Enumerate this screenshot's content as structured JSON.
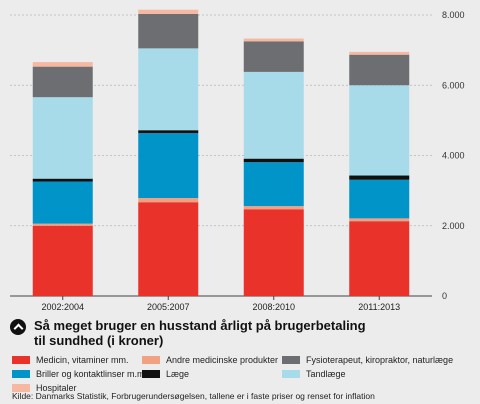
{
  "title": "Så meget bruger en husstand årligt på brugerbetaling til sundhed (i kroner)",
  "title_lines": [
    "Så meget bruger en husstand årligt på brugerbetaling",
    "til sundhed (i kroner)"
  ],
  "source": "Kilde: Danmarks Statistik, Forbrugerundersøgelsen, tallene er i faste priser og renset for inflation",
  "chart_data": {
    "type": "bar",
    "stacked": true,
    "categories": [
      "2002:2004",
      "2005:2007",
      "2008:2010",
      "2011:2013"
    ],
    "ylim": [
      0,
      8000
    ],
    "yticks": [
      0,
      2000,
      4000,
      6000,
      8000
    ],
    "ytick_labels": [
      "0",
      "2.000",
      "4.000",
      "6.000",
      "8.000"
    ],
    "y_axis_side": "right",
    "grid": true,
    "legend_position": "bottom",
    "series": [
      {
        "name": "Medicin, vitaminer mm.",
        "color": "#e8322a",
        "values": [
          2000,
          2670,
          2470,
          2130
        ]
      },
      {
        "name": "Andre medicinske produkter",
        "color": "#f2a082",
        "values": [
          60,
          120,
          90,
          80
        ]
      },
      {
        "name": "Briller og kontaktlinser m.m.",
        "color": "#0094c8",
        "values": [
          1200,
          1850,
          1250,
          1100
        ]
      },
      {
        "name": "Læge",
        "color": "#111111",
        "values": [
          80,
          80,
          100,
          120
        ]
      },
      {
        "name": "Tandlæge",
        "color": "#a8dbe9",
        "values": [
          2320,
          2330,
          2470,
          2570
        ]
      },
      {
        "name": "Fysioterapeut, kiropraktor, naturlæge",
        "color": "#6d6e71",
        "values": [
          870,
          980,
          870,
          870
        ]
      },
      {
        "name": "Hospitaler",
        "color": "#f6b8a0",
        "values": [
          130,
          120,
          80,
          80
        ]
      }
    ]
  },
  "legend_order": [
    0,
    1,
    5,
    2,
    3,
    4,
    6
  ]
}
